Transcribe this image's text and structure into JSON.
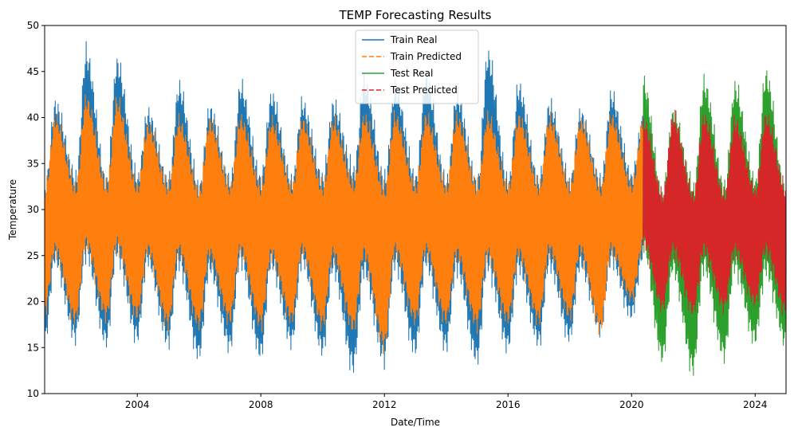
{
  "chart_data": {
    "type": "line",
    "title": "TEMP Forecasting Results",
    "xlabel": "Date/Time",
    "ylabel": "Temperature",
    "x_range": [
      "2001-01-01",
      "2024-12-31"
    ],
    "ylim": [
      10,
      50
    ],
    "x_ticks": [
      "2004",
      "2008",
      "2012",
      "2016",
      "2020",
      "2024"
    ],
    "y_ticks": [
      "10",
      "15",
      "20",
      "25",
      "30",
      "35",
      "40",
      "45",
      "50"
    ],
    "grid": false,
    "legend_position": "top-center",
    "series": [
      {
        "name": "Train Real",
        "color": "#1f77b4",
        "style": "solid",
        "x": [
          "2001-01-01",
          "2001-05-01",
          "2002-01-01",
          "2002-05-01",
          "2003-01-01",
          "2003-05-01",
          "2004-01-01",
          "2004-05-01",
          "2005-01-01",
          "2005-05-01",
          "2006-01-01",
          "2006-05-01",
          "2007-01-01",
          "2007-05-01",
          "2008-01-01",
          "2008-05-01",
          "2009-01-01",
          "2009-05-01",
          "2010-01-01",
          "2010-05-01",
          "2011-01-01",
          "2011-05-01",
          "2012-01-01",
          "2012-05-01",
          "2013-01-01",
          "2013-05-01",
          "2014-01-01",
          "2014-05-01",
          "2015-01-01",
          "2015-05-01",
          "2016-01-01",
          "2016-05-01",
          "2017-01-01",
          "2017-05-01",
          "2018-01-01",
          "2018-05-01",
          "2019-01-01",
          "2019-05-01",
          "2020-01-01",
          "2020-05-15"
        ],
        "y_min": [
          14.5,
          23.5,
          15.0,
          24.0,
          14.5,
          24.0,
          15.0,
          23.5,
          14.5,
          23.0,
          13.0,
          22.5,
          14.0,
          23.5,
          13.0,
          23.0,
          14.5,
          23.5,
          13.5,
          22.5,
          11.5,
          22.0,
          12.5,
          23.0,
          13.5,
          23.0,
          14.0,
          22.5,
          12.5,
          22.5,
          14.0,
          22.5,
          14.5,
          23.0,
          15.0,
          23.0,
          16.0,
          23.5,
          17.5,
          24.0
        ],
        "y_max": [
          33.0,
          42.5,
          34.5,
          48.3,
          34.0,
          47.3,
          34.5,
          41.5,
          34.0,
          44.5,
          33.5,
          42.0,
          34.0,
          44.5,
          34.5,
          43.5,
          34.0,
          42.5,
          34.5,
          42.5,
          35.5,
          45.3,
          34.5,
          44.5,
          34.5,
          45.5,
          34.0,
          43.5,
          34.0,
          48.2,
          34.0,
          44.5,
          34.0,
          42.5,
          34.0,
          41.5,
          34.0,
          43.5,
          34.5,
          41.0
        ]
      },
      {
        "name": "Train Predicted",
        "color": "#ff7f0e",
        "style": "dashed",
        "x": [
          "2001-01-01",
          "2001-05-01",
          "2002-01-01",
          "2002-05-01",
          "2003-01-01",
          "2003-05-01",
          "2004-01-01",
          "2004-05-01",
          "2005-01-01",
          "2005-05-01",
          "2006-01-01",
          "2006-05-01",
          "2007-01-01",
          "2007-05-01",
          "2008-01-01",
          "2008-05-01",
          "2009-01-01",
          "2009-05-01",
          "2010-01-01",
          "2010-05-01",
          "2011-01-01",
          "2011-05-01",
          "2012-01-01",
          "2012-05-01",
          "2013-01-01",
          "2013-05-01",
          "2014-01-01",
          "2014-05-01",
          "2015-01-01",
          "2015-05-01",
          "2016-01-01",
          "2016-05-01",
          "2017-01-01",
          "2017-05-01",
          "2018-01-01",
          "2018-05-01",
          "2019-01-01",
          "2019-05-01",
          "2020-01-01",
          "2020-05-15"
        ],
        "y_min": [
          18.0,
          24.5,
          17.0,
          25.0,
          17.5,
          25.0,
          17.5,
          24.5,
          16.5,
          24.5,
          16.5,
          24.0,
          17.0,
          24.5,
          16.5,
          24.0,
          17.0,
          24.5,
          16.5,
          24.0,
          16.0,
          24.0,
          14.0,
          24.5,
          17.0,
          24.5,
          17.0,
          24.0,
          16.5,
          24.0,
          17.0,
          24.0,
          17.0,
          24.5,
          17.5,
          24.5,
          16.0,
          24.5,
          19.5,
          25.0
        ],
        "y_max": [
          33.0,
          40.8,
          33.5,
          43.0,
          33.5,
          42.8,
          33.5,
          40.0,
          33.5,
          40.5,
          33.0,
          40.5,
          33.5,
          40.8,
          33.5,
          40.5,
          33.5,
          40.5,
          33.5,
          40.5,
          34.0,
          41.0,
          33.5,
          41.0,
          33.5,
          41.0,
          33.5,
          41.0,
          33.5,
          41.0,
          33.5,
          41.0,
          33.5,
          40.8,
          33.5,
          40.5,
          33.5,
          41.0,
          33.5,
          40.8
        ]
      },
      {
        "name": "Test Real",
        "color": "#2ca02c",
        "style": "solid",
        "x": [
          "2020-05-15",
          "2021-01-01",
          "2021-05-01",
          "2022-01-01",
          "2022-05-01",
          "2023-01-01",
          "2023-05-01",
          "2024-01-01",
          "2024-05-01",
          "2024-12-31"
        ],
        "y_min": [
          25.0,
          12.7,
          22.5,
          11.4,
          22.5,
          13.0,
          22.5,
          14.7,
          22.0,
          14.5
        ],
        "y_max": [
          45.0,
          32.5,
          41.5,
          33.5,
          45.0,
          33.5,
          44.5,
          34.0,
          46.0,
          32.5
        ]
      },
      {
        "name": "Test Predicted",
        "color": "#d62728",
        "style": "dashed",
        "x": [
          "2020-05-15",
          "2021-01-01",
          "2021-05-01",
          "2022-01-01",
          "2022-05-01",
          "2023-01-01",
          "2023-05-01",
          "2024-01-01",
          "2024-05-01",
          "2024-12-31"
        ],
        "y_min": [
          25.5,
          18.5,
          24.5,
          18.0,
          24.5,
          18.5,
          24.5,
          19.0,
          24.5,
          18.0
        ],
        "y_max": [
          40.5,
          32.5,
          41.0,
          32.5,
          41.0,
          32.5,
          40.5,
          33.0,
          41.0,
          33.0
        ]
      }
    ]
  }
}
